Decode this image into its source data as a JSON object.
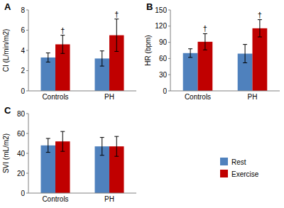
{
  "chart_data": [
    {
      "type": "bar",
      "title": "A",
      "y_label": "CI (L/min/m2)",
      "categories": [
        "Controls",
        "PH"
      ],
      "series": [
        {
          "name": "Rest",
          "color": "#4f81bd",
          "values": [
            3.3,
            3.2
          ],
          "errors": [
            0.45,
            0.75
          ]
        },
        {
          "name": "Exercise",
          "color": "#c00000",
          "values": [
            4.6,
            5.5
          ],
          "errors": [
            0.9,
            1.6
          ]
        }
      ],
      "ylim": [
        0,
        8
      ],
      "yticks": [
        0,
        2,
        4,
        6,
        8
      ],
      "grid": false,
      "annotations": [
        {
          "text": "†",
          "category": "Controls",
          "series": "Exercise"
        },
        {
          "text": "†",
          "category": "PH",
          "series": "Exercise"
        }
      ]
    },
    {
      "type": "bar",
      "title": "B",
      "y_label": "HR (bpm)",
      "categories": [
        "Controls",
        "PH"
      ],
      "series": [
        {
          "name": "Rest",
          "color": "#4f81bd",
          "values": [
            70,
            69
          ],
          "errors": [
            8,
            17
          ]
        },
        {
          "name": "Exercise",
          "color": "#c00000",
          "values": [
            91,
            116
          ],
          "errors": [
            15,
            16
          ]
        }
      ],
      "ylim": [
        0,
        150
      ],
      "yticks": [
        0,
        30,
        60,
        90,
        120,
        150
      ],
      "grid": false,
      "annotations": [
        {
          "text": "†",
          "category": "Controls",
          "series": "Exercise"
        },
        {
          "text": "†",
          "category": "PH",
          "series": "Exercise"
        }
      ]
    },
    {
      "type": "bar",
      "title": "C",
      "y_label": "SVI (mL/m2)",
      "categories": [
        "Controls",
        "PH"
      ],
      "series": [
        {
          "name": "Rest",
          "color": "#4f81bd",
          "values": [
            48,
            47
          ],
          "errors": [
            7,
            9
          ]
        },
        {
          "name": "Exercise",
          "color": "#c00000",
          "values": [
            52,
            47
          ],
          "errors": [
            10,
            10
          ]
        }
      ],
      "ylim": [
        0,
        80
      ],
      "yticks": [
        0,
        20,
        40,
        60,
        80
      ],
      "grid": false,
      "legend": "right"
    }
  ]
}
